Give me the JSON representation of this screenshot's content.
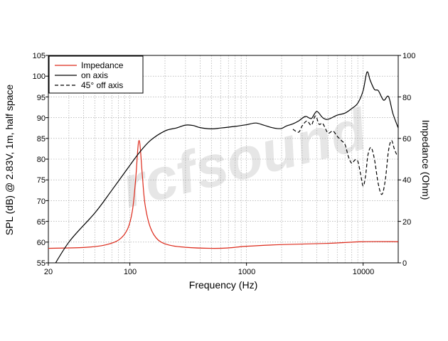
{
  "chart_data": {
    "type": "line",
    "xlabel": "Frequency (Hz)",
    "ylabel": "SPL (dB) @ 2.83V, 1m, half space",
    "y2label": "Impedance (Ohm)",
    "xscale": "log",
    "xlim": [
      20,
      20000
    ],
    "ylim": [
      55,
      105
    ],
    "y2lim": [
      0,
      100
    ],
    "x_ticks": [
      "20",
      "100",
      "1000",
      "10000"
    ],
    "y_ticks": [
      "55",
      "60",
      "65",
      "70",
      "75",
      "80",
      "85",
      "90",
      "95",
      "100",
      "105"
    ],
    "y2_ticks": [
      "0",
      "20",
      "40",
      "60",
      "80",
      "100"
    ],
    "grid": true,
    "legend_position": "top-left",
    "watermark": "rcfsound",
    "series": [
      {
        "name": "Impedance",
        "axis": "right",
        "color": "#dd2a1b",
        "dash": "solid",
        "points": [
          [
            20,
            7
          ],
          [
            40,
            7.4
          ],
          [
            60,
            8.5
          ],
          [
            80,
            11
          ],
          [
            95,
            16
          ],
          [
            105,
            25
          ],
          [
            112,
            40
          ],
          [
            117,
            55
          ],
          [
            120,
            59
          ],
          [
            123,
            55
          ],
          [
            128,
            42
          ],
          [
            135,
            28
          ],
          [
            150,
            17
          ],
          [
            175,
            11
          ],
          [
            220,
            8.5
          ],
          [
            300,
            7.5
          ],
          [
            500,
            7
          ],
          [
            700,
            7.2
          ],
          [
            1000,
            8
          ],
          [
            2000,
            8.8
          ],
          [
            5000,
            9.4
          ],
          [
            10000,
            10.2
          ],
          [
            20000,
            10.2
          ]
        ]
      },
      {
        "name": "on axis",
        "axis": "left",
        "color": "#000000",
        "dash": "solid",
        "points": [
          [
            20,
            52
          ],
          [
            30,
            60
          ],
          [
            50,
            67
          ],
          [
            70,
            72.5
          ],
          [
            100,
            78.5
          ],
          [
            120,
            81.5
          ],
          [
            150,
            84.5
          ],
          [
            200,
            86.8
          ],
          [
            250,
            87.5
          ],
          [
            300,
            88.2
          ],
          [
            350,
            88.1
          ],
          [
            400,
            87.6
          ],
          [
            500,
            87.3
          ],
          [
            600,
            87.5
          ],
          [
            800,
            87.9
          ],
          [
            1000,
            88.3
          ],
          [
            1200,
            88.7
          ],
          [
            1400,
            88.2
          ],
          [
            1600,
            87.7
          ],
          [
            1800,
            87.4
          ],
          [
            2000,
            87.4
          ],
          [
            2200,
            88
          ],
          [
            2500,
            88.5
          ],
          [
            2800,
            89.2
          ],
          [
            3200,
            90.3
          ],
          [
            3600,
            89.8
          ],
          [
            4000,
            91.5
          ],
          [
            4500,
            90
          ],
          [
            5000,
            89.6
          ],
          [
            6000,
            90.6
          ],
          [
            7000,
            91.1
          ],
          [
            8000,
            92.2
          ],
          [
            9000,
            93.5
          ],
          [
            10000,
            96.5
          ],
          [
            10800,
            101
          ],
          [
            11500,
            99
          ],
          [
            12500,
            96.8
          ],
          [
            13500,
            96.5
          ],
          [
            15000,
            94.2
          ],
          [
            16500,
            95.1
          ],
          [
            18000,
            91
          ],
          [
            20000,
            87.5
          ]
        ]
      },
      {
        "name": "45° off axis",
        "axis": "left",
        "color": "#000000",
        "dash": "dashed",
        "points": [
          [
            2500,
            87.2
          ],
          [
            2800,
            86.5
          ],
          [
            3000,
            88
          ],
          [
            3300,
            89.2
          ],
          [
            3600,
            88.2
          ],
          [
            3900,
            90.4
          ],
          [
            4200,
            88.4
          ],
          [
            4500,
            88.6
          ],
          [
            5000,
            86.3
          ],
          [
            5500,
            86.8
          ],
          [
            6000,
            85.5
          ],
          [
            6500,
            84.5
          ],
          [
            7000,
            83.5
          ],
          [
            7500,
            80.5
          ],
          [
            8000,
            79
          ],
          [
            8500,
            79.8
          ],
          [
            9000,
            79.5
          ],
          [
            9500,
            76.5
          ],
          [
            10000,
            73.5
          ],
          [
            10500,
            76
          ],
          [
            11000,
            81
          ],
          [
            11700,
            82.8
          ],
          [
            12500,
            80
          ],
          [
            13500,
            74
          ],
          [
            14500,
            71.5
          ],
          [
            15500,
            75
          ],
          [
            16500,
            82
          ],
          [
            17500,
            84.5
          ],
          [
            18500,
            82.5
          ],
          [
            19500,
            81
          ],
          [
            20000,
            80.8
          ]
        ]
      }
    ]
  }
}
